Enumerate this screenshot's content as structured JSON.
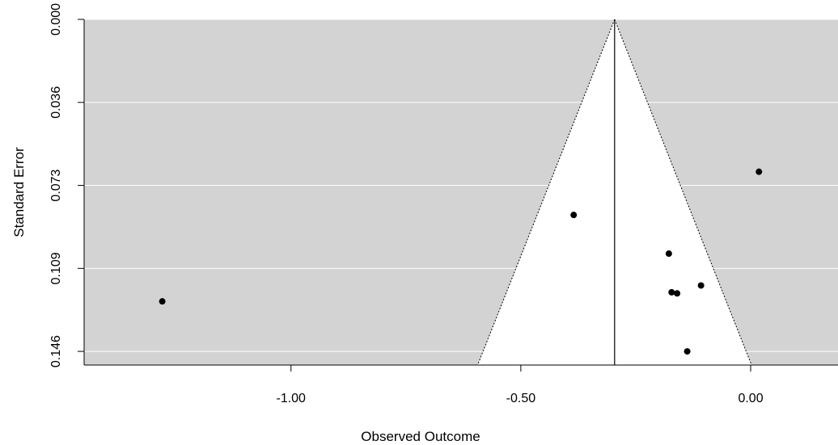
{
  "chart_data": {
    "type": "scatter",
    "title": "",
    "xlabel": "Observed Outcome",
    "ylabel": "Standard Error",
    "xlim": [
      -1.45,
      0.19
    ],
    "ylim": [
      0.0,
      0.152
    ],
    "y_reversed": true,
    "grid": true,
    "background_color": "#d3d3d3",
    "funnel_color": "#ffffff",
    "x_ticks": [
      {
        "value": -1.0,
        "label": "-1.00"
      },
      {
        "value": -0.5,
        "label": "-0.50"
      },
      {
        "value": 0.0,
        "label": "0.00"
      }
    ],
    "y_ticks": [
      {
        "value": 0.0,
        "label": "0.000"
      },
      {
        "value": 0.0365,
        "label": "0.036"
      },
      {
        "value": 0.073,
        "label": "0.073"
      },
      {
        "value": 0.1095,
        "label": "0.109"
      },
      {
        "value": 0.146,
        "label": "0.146"
      }
    ],
    "funnel": {
      "center": -0.296,
      "apex_se": 0.0,
      "base_se": 0.152,
      "base_left": -0.594,
      "base_right": 0.002
    },
    "points": [
      {
        "x": -1.28,
        "y": 0.124
      },
      {
        "x": -0.385,
        "y": 0.086
      },
      {
        "x": 0.018,
        "y": 0.067
      },
      {
        "x": -0.178,
        "y": 0.103
      },
      {
        "x": -0.108,
        "y": 0.117
      },
      {
        "x": -0.172,
        "y": 0.12
      },
      {
        "x": -0.16,
        "y": 0.1205
      },
      {
        "x": -0.138,
        "y": 0.146
      }
    ]
  }
}
